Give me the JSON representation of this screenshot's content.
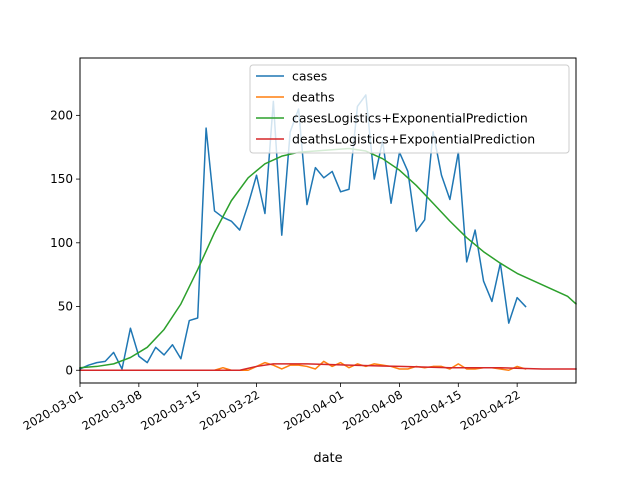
{
  "chart_data": {
    "type": "line",
    "title": "",
    "xlabel": "date",
    "ylabel": "",
    "xlim": [
      "2020-03-01",
      "2020-04-29"
    ],
    "ylim": [
      -10,
      245
    ],
    "grid": false,
    "legend_position": "top-right",
    "x_ticks": [
      "2020-03-01",
      "2020-03-08",
      "2020-03-15",
      "2020-03-22",
      "2020-04-01",
      "2020-04-08",
      "2020-04-15",
      "2020-04-22"
    ],
    "y_ticks": [
      0,
      50,
      100,
      150,
      200
    ],
    "series": [
      {
        "name": "cases",
        "color": "#1f77b4",
        "points": [
          [
            "2020-03-01",
            1
          ],
          [
            "2020-03-02",
            4
          ],
          [
            "2020-03-03",
            6
          ],
          [
            "2020-03-04",
            7
          ],
          [
            "2020-03-05",
            14
          ],
          [
            "2020-03-06",
            1
          ],
          [
            "2020-03-07",
            33
          ],
          [
            "2020-03-08",
            11
          ],
          [
            "2020-03-09",
            6
          ],
          [
            "2020-03-10",
            18
          ],
          [
            "2020-03-11",
            12
          ],
          [
            "2020-03-12",
            20
          ],
          [
            "2020-03-13",
            9
          ],
          [
            "2020-03-14",
            39
          ],
          [
            "2020-03-15",
            41
          ],
          [
            "2020-03-16",
            190
          ],
          [
            "2020-03-17",
            125
          ],
          [
            "2020-03-18",
            120
          ],
          [
            "2020-03-19",
            117
          ],
          [
            "2020-03-20",
            110
          ],
          [
            "2020-03-21",
            130
          ],
          [
            "2020-03-22",
            153
          ],
          [
            "2020-03-23",
            123
          ],
          [
            "2020-03-24",
            211
          ],
          [
            "2020-03-25",
            106
          ],
          [
            "2020-03-26",
            187
          ],
          [
            "2020-03-27",
            205
          ],
          [
            "2020-03-28",
            130
          ],
          [
            "2020-03-29",
            159
          ],
          [
            "2020-03-30",
            151
          ],
          [
            "2020-03-31",
            156
          ],
          [
            "2020-04-01",
            140
          ],
          [
            "2020-04-02",
            142
          ],
          [
            "2020-04-03",
            207
          ],
          [
            "2020-04-04",
            216
          ],
          [
            "2020-04-05",
            150
          ],
          [
            "2020-04-06",
            180
          ],
          [
            "2020-04-07",
            131
          ],
          [
            "2020-04-08",
            171
          ],
          [
            "2020-04-09",
            156
          ],
          [
            "2020-04-10",
            109
          ],
          [
            "2020-04-11",
            118
          ],
          [
            "2020-04-12",
            187
          ],
          [
            "2020-04-13",
            153
          ],
          [
            "2020-04-14",
            134
          ],
          [
            "2020-04-15",
            171
          ],
          [
            "2020-04-16",
            85
          ],
          [
            "2020-04-17",
            110
          ],
          [
            "2020-04-18",
            70
          ],
          [
            "2020-04-19",
            54
          ],
          [
            "2020-04-20",
            84
          ],
          [
            "2020-04-21",
            37
          ],
          [
            "2020-04-22",
            57
          ],
          [
            "2020-04-23",
            50
          ]
        ]
      },
      {
        "name": "deaths",
        "color": "#ff7f0e",
        "points": [
          [
            "2020-03-01",
            0
          ],
          [
            "2020-03-05",
            0
          ],
          [
            "2020-03-10",
            0
          ],
          [
            "2020-03-15",
            0
          ],
          [
            "2020-03-17",
            0
          ],
          [
            "2020-03-18",
            2
          ],
          [
            "2020-03-19",
            0
          ],
          [
            "2020-03-20",
            0
          ],
          [
            "2020-03-21",
            0
          ],
          [
            "2020-03-22",
            3
          ],
          [
            "2020-03-23",
            6
          ],
          [
            "2020-03-24",
            4
          ],
          [
            "2020-03-25",
            1
          ],
          [
            "2020-03-26",
            4
          ],
          [
            "2020-03-27",
            4
          ],
          [
            "2020-03-28",
            3
          ],
          [
            "2020-03-29",
            1
          ],
          [
            "2020-03-30",
            7
          ],
          [
            "2020-03-31",
            3
          ],
          [
            "2020-04-01",
            6
          ],
          [
            "2020-04-02",
            2
          ],
          [
            "2020-04-03",
            5
          ],
          [
            "2020-04-04",
            3
          ],
          [
            "2020-04-05",
            5
          ],
          [
            "2020-04-06",
            4
          ],
          [
            "2020-04-07",
            3
          ],
          [
            "2020-04-08",
            1
          ],
          [
            "2020-04-09",
            1
          ],
          [
            "2020-04-10",
            3
          ],
          [
            "2020-04-11",
            2
          ],
          [
            "2020-04-12",
            3
          ],
          [
            "2020-04-13",
            3
          ],
          [
            "2020-04-14",
            1
          ],
          [
            "2020-04-15",
            5
          ],
          [
            "2020-04-16",
            1
          ],
          [
            "2020-04-17",
            1
          ],
          [
            "2020-04-18",
            2
          ],
          [
            "2020-04-19",
            2
          ],
          [
            "2020-04-20",
            1
          ],
          [
            "2020-04-21",
            0
          ],
          [
            "2020-04-22",
            3
          ],
          [
            "2020-04-23",
            1
          ]
        ]
      },
      {
        "name": "casesLogistics+ExponentialPrediction",
        "color": "#2ca02c",
        "points": [
          [
            "2020-03-01",
            2
          ],
          [
            "2020-03-03",
            3
          ],
          [
            "2020-03-05",
            5
          ],
          [
            "2020-03-07",
            10
          ],
          [
            "2020-03-09",
            18
          ],
          [
            "2020-03-11",
            32
          ],
          [
            "2020-03-13",
            52
          ],
          [
            "2020-03-15",
            79
          ],
          [
            "2020-03-17",
            108
          ],
          [
            "2020-03-19",
            133
          ],
          [
            "2020-03-21",
            151
          ],
          [
            "2020-03-23",
            162
          ],
          [
            "2020-03-25",
            168
          ],
          [
            "2020-03-27",
            171
          ],
          [
            "2020-03-29",
            172
          ],
          [
            "2020-03-31",
            173
          ],
          [
            "2020-04-02",
            174
          ],
          [
            "2020-04-04",
            172
          ],
          [
            "2020-04-06",
            166
          ],
          [
            "2020-04-08",
            157
          ],
          [
            "2020-04-10",
            145
          ],
          [
            "2020-04-12",
            131
          ],
          [
            "2020-04-14",
            117
          ],
          [
            "2020-04-16",
            104
          ],
          [
            "2020-04-18",
            93
          ],
          [
            "2020-04-20",
            84
          ],
          [
            "2020-04-22",
            76
          ],
          [
            "2020-04-24",
            70
          ],
          [
            "2020-04-26",
            64
          ],
          [
            "2020-04-28",
            58
          ],
          [
            "2020-04-29",
            52
          ]
        ]
      },
      {
        "name": "deathsLogistics+ExponentialPrediction",
        "color": "#d62728",
        "points": [
          [
            "2020-03-01",
            0
          ],
          [
            "2020-03-10",
            0
          ],
          [
            "2020-03-15",
            0
          ],
          [
            "2020-03-20",
            0
          ],
          [
            "2020-03-22",
            3
          ],
          [
            "2020-03-24",
            5
          ],
          [
            "2020-03-28",
            5
          ],
          [
            "2020-04-02",
            4
          ],
          [
            "2020-04-08",
            3
          ],
          [
            "2020-04-14",
            2
          ],
          [
            "2020-04-20",
            2
          ],
          [
            "2020-04-25",
            1
          ],
          [
            "2020-04-29",
            1
          ]
        ]
      }
    ]
  }
}
